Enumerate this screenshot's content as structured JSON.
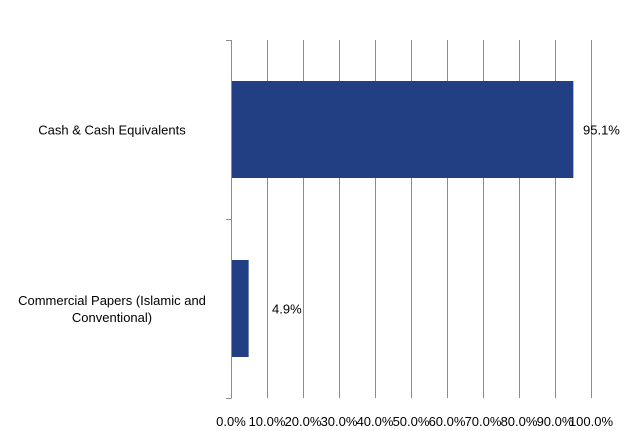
{
  "chart_data": {
    "type": "bar",
    "orientation": "horizontal",
    "categories": [
      "Cash & Cash Equivalents",
      "Commercial Papers (Islamic and Conventional)"
    ],
    "category_label_lines": [
      [
        "Cash & Cash Equivalents"
      ],
      [
        "Commercial Papers (Islamic and",
        "Conventional)"
      ]
    ],
    "values": [
      95.1,
      4.9
    ],
    "data_labels": [
      "95.1%",
      "4.9%"
    ],
    "xlim": [
      0,
      100
    ],
    "x_ticks": [
      0,
      10,
      20,
      30,
      40,
      50,
      60,
      70,
      80,
      90,
      100
    ],
    "x_tick_labels": [
      "0.0%",
      "10.0%",
      "20.0%",
      "30.0%",
      "40.0%",
      "50.0%",
      "60.0%",
      "70.0%",
      "80.0%",
      "90.0%",
      "100.0%"
    ],
    "title": "",
    "xlabel": "",
    "ylabel": "",
    "grid": "vertical",
    "legend": "none",
    "bar_color": "#223F84",
    "grid_color": "#8C8C8C"
  }
}
